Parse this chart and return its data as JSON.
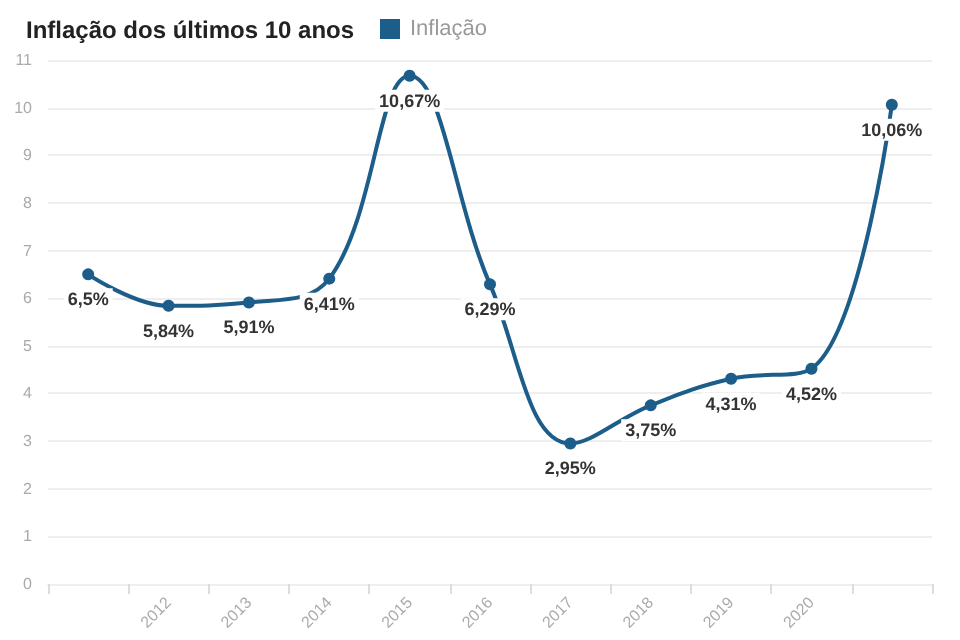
{
  "chart_data": {
    "type": "line",
    "title": "Inflação dos últimos 10 anos",
    "categories": [
      null,
      "2012",
      "2013",
      "2014",
      "2015",
      "2016",
      "2017",
      "2018",
      "2019",
      "2020",
      null
    ],
    "series": [
      {
        "name": "Inflação",
        "color": "#1c5d8a",
        "values": [
          6.5,
          5.84,
          5.91,
          6.41,
          10.67,
          6.29,
          2.95,
          3.75,
          4.31,
          4.52,
          10.06
        ],
        "value_labels": [
          "6,5%",
          "5,84%",
          "5,91%",
          "6,41%",
          "10,67%",
          "6,29%",
          "2,95%",
          "3,75%",
          "4,31%",
          "4,52%",
          "10,06%"
        ]
      }
    ],
    "ylim": [
      0,
      11
    ],
    "yticks": [
      0,
      1,
      2,
      3,
      4,
      5,
      6,
      7,
      8,
      9,
      10,
      11
    ],
    "grid": "y",
    "legend": "top left",
    "marker": "circle",
    "line_style": "solid"
  }
}
